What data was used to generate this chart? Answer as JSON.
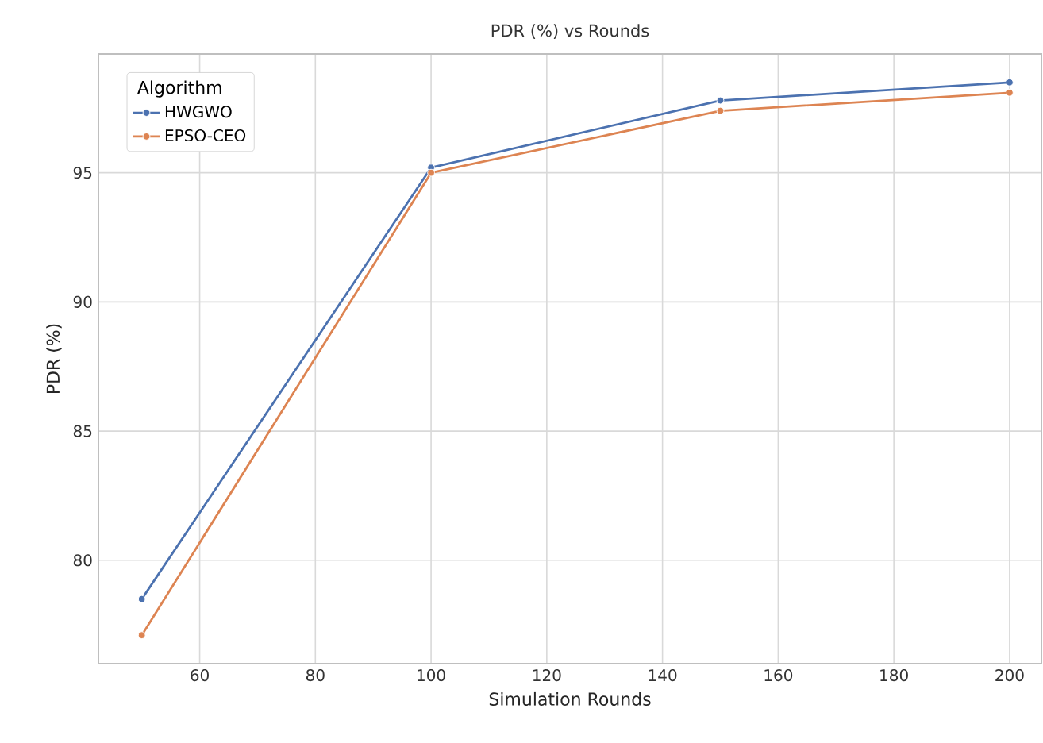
{
  "chart_data": {
    "type": "line",
    "title": "PDR (%) vs Rounds",
    "xlabel": "Simulation Rounds",
    "ylabel": "PDR (%)",
    "legend_title": "Algorithm",
    "x": [
      50,
      100,
      150,
      200
    ],
    "series": [
      {
        "name": "HWGWO",
        "color": "#4c72b0",
        "values": [
          78.5,
          95.2,
          97.8,
          98.5
        ]
      },
      {
        "name": "EPSO-CEO",
        "color": "#dd8452",
        "values": [
          77.1,
          95.0,
          97.4,
          98.1
        ]
      }
    ],
    "xlim": [
      42.5,
      205.5
    ],
    "ylim": [
      76,
      99.6
    ],
    "xticks": [
      60,
      80,
      100,
      120,
      140,
      160,
      180,
      200
    ],
    "yticks": [
      80,
      85,
      90,
      95
    ],
    "grid": true,
    "legend": "top left",
    "marker": "circle",
    "line_style": "solid"
  }
}
